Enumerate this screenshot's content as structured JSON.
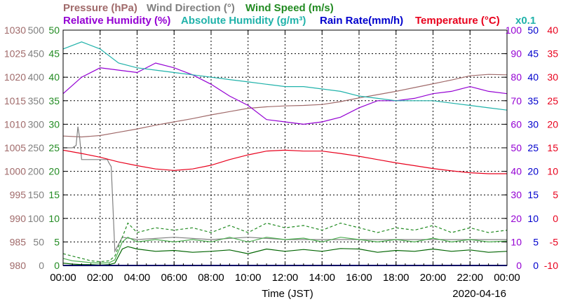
{
  "chart_data": {
    "type": "line",
    "titles": {
      "row1": [
        {
          "key": "pressure",
          "text": "Pressure (hPa)",
          "color": "#a06a6a"
        },
        {
          "key": "wind_direction",
          "text": "Wind Direction (°)",
          "color": "#808080"
        },
        {
          "key": "wind_speed",
          "text": "Wind Speed (m/s)",
          "color": "#228b22"
        }
      ],
      "row2": [
        {
          "key": "humidity",
          "text": "Relative Humidity (%)",
          "color": "#9400d3"
        },
        {
          "key": "abs_humidity",
          "text": "Absolute Humidity (g/m³)",
          "color": "#20b2aa"
        },
        {
          "key": "rain",
          "text": "Rain Rate(mm/h)",
          "color": "#0000cd"
        },
        {
          "key": "temperature",
          "text": "Temperature (°C)",
          "color": "#e8001c"
        }
      ],
      "abs_scale_note": "x0.1"
    },
    "xlabel": "Time (JST)",
    "date": "2020-04-16",
    "x_ticks": [
      "00:00",
      "02:00",
      "04:00",
      "06:00",
      "08:00",
      "10:00",
      "12:00",
      "14:00",
      "16:00",
      "18:00",
      "20:00",
      "22:00",
      "00:00"
    ],
    "x_range_hours": [
      0,
      24
    ],
    "grid": true,
    "axes": {
      "pressure": {
        "range": [
          980,
          1030
        ],
        "ticks": [
          "1030",
          "1025",
          "1020",
          "1015",
          "1010",
          "1005",
          "1000",
          "995",
          "990",
          "985",
          "980"
        ],
        "color": "#a06a6a"
      },
      "wind_direction": {
        "range": [
          0,
          500
        ],
        "ticks": [
          "500",
          "450",
          "400",
          "350",
          "300",
          "250",
          "200",
          "150",
          "100",
          "50",
          "0"
        ],
        "color": "#808080"
      },
      "wind_speed": {
        "range": [
          0,
          50
        ],
        "ticks": [
          "50",
          "45",
          "40",
          "35",
          "30",
          "25",
          "20",
          "15",
          "10",
          "5",
          "0"
        ],
        "color": "#228b22"
      },
      "humidity": {
        "range": [
          0,
          100
        ],
        "ticks": [
          "100",
          "90",
          "80",
          "70",
          "60",
          "50",
          "40",
          "30",
          "20",
          "10",
          "0"
        ],
        "color": "#9400d3"
      },
      "rain": {
        "range": [
          0,
          50
        ],
        "ticks": [
          "50",
          "45",
          "40",
          "35",
          "30",
          "25",
          "20",
          "15",
          "10",
          "5",
          "0"
        ],
        "color": "#0000cd"
      },
      "temperature": {
        "range": [
          -10,
          40
        ],
        "ticks": [
          "40",
          "35",
          "30",
          "25",
          "20",
          "15",
          "10",
          "5",
          "0",
          "-5",
          "-10"
        ],
        "color": "#e8001c"
      }
    },
    "series": [
      {
        "name": "Pressure (hPa)",
        "axis": "pressure",
        "color": "#a06a6a",
        "x": [
          0,
          1,
          2,
          3,
          4,
          5,
          6,
          7,
          8,
          9,
          10,
          11,
          12,
          13,
          14,
          15,
          16,
          17,
          18,
          19,
          20,
          21,
          22,
          23,
          24
        ],
        "y": [
          1007.5,
          1007.3,
          1007.6,
          1008.3,
          1009,
          1009.8,
          1010.5,
          1011.2,
          1012,
          1012.7,
          1013.4,
          1013.7,
          1013.9,
          1014,
          1014.2,
          1014.8,
          1015.6,
          1016.3,
          1017,
          1017.8,
          1018.6,
          1019.4,
          1020.3,
          1020.6,
          1020.5
        ]
      },
      {
        "name": "Wind Direction (°)",
        "axis": "wind_direction",
        "color": "#808080",
        "x": [
          0,
          0.5,
          0.7,
          0.8,
          0.9,
          1.0,
          1.1,
          1.5,
          2.4,
          2.45,
          2.6,
          2.8,
          3.2,
          4,
          6,
          8,
          10,
          12,
          14,
          16,
          18,
          20,
          22,
          24
        ],
        "y": [
          250,
          250,
          255,
          295,
          270,
          225,
          225,
          225,
          225,
          220,
          210,
          30,
          60,
          55,
          60,
          55,
          60,
          55,
          55,
          55,
          55,
          55,
          55,
          55
        ]
      },
      {
        "name": "Wind Speed (m/s)",
        "axis": "wind_speed",
        "x": [
          0,
          0.5,
          1,
          1.5,
          2,
          2.5,
          2.8,
          3.2,
          3.5,
          4,
          5,
          6,
          7,
          8,
          9,
          10,
          11,
          12,
          13,
          14,
          15,
          16,
          17,
          18,
          19,
          20,
          21,
          22,
          23,
          24
        ],
        "y": [
          0.5,
          0.3,
          0.2,
          0.2,
          0.1,
          0.2,
          0.5,
          3.5,
          4,
          3.5,
          3,
          3.2,
          2.8,
          3,
          3.3,
          2.5,
          3.5,
          3,
          3.4,
          3,
          3.6,
          3.5,
          2.8,
          3.2,
          3,
          3.5,
          3,
          3.3,
          2.8,
          3
        ],
        "y_max": [
          2.5,
          2,
          1.5,
          1,
          0.8,
          1,
          2,
          6,
          9,
          7,
          8,
          7.5,
          8,
          7,
          8.5,
          7,
          9,
          8,
          8.5,
          7.5,
          9,
          8,
          7,
          8,
          7.5,
          8.5,
          7,
          8,
          7,
          7.5
        ],
        "y_avg": [
          1.5,
          1,
          0.8,
          0.6,
          0.5,
          0.6,
          1.2,
          5,
          6,
          5,
          5.5,
          5,
          5.5,
          5,
          6,
          5,
          6,
          5.5,
          5.8,
          5,
          6,
          5.5,
          5,
          5.5,
          5,
          5.8,
          5,
          5.5,
          5,
          5.2
        ],
        "colors": [
          "#006400",
          "#228b22",
          "#4caf50"
        ]
      },
      {
        "name": "Relative Humidity (%)",
        "axis": "humidity",
        "color": "#9400d3",
        "x": [
          0,
          1,
          2,
          3,
          4,
          5,
          6,
          7,
          8,
          9,
          10,
          11,
          12,
          13,
          14,
          15,
          16,
          17,
          18,
          19,
          20,
          21,
          22,
          23,
          24
        ],
        "y": [
          73,
          80,
          84,
          83,
          82,
          86,
          84,
          81,
          77,
          72,
          68,
          62,
          61,
          60,
          61,
          63,
          67,
          70,
          70,
          71,
          73,
          74,
          76,
          74,
          73
        ]
      },
      {
        "name": "Absolute Humidity (g/m³)",
        "axis": "humidity",
        "color": "#20b2aa",
        "x": [
          0,
          1,
          2,
          3,
          4,
          5,
          6,
          7,
          8,
          9,
          10,
          11,
          12,
          13,
          14,
          15,
          16,
          17,
          18,
          19,
          20,
          21,
          22,
          23,
          24
        ],
        "y": [
          92,
          95,
          92,
          86,
          84,
          83,
          82,
          81,
          80,
          79,
          78,
          77,
          76,
          76,
          75,
          74,
          72,
          71,
          70,
          70,
          70,
          69,
          68,
          67,
          66
        ]
      },
      {
        "name": "Temperature (°C)",
        "axis": "temperature",
        "color": "#e8001c",
        "x": [
          0,
          1,
          2,
          3,
          4,
          5,
          6,
          7,
          8,
          9,
          10,
          11,
          12,
          13,
          14,
          15,
          16,
          17,
          18,
          19,
          20,
          21,
          22,
          23,
          24
        ],
        "y": [
          14.5,
          13.8,
          13,
          12,
          11.2,
          10.5,
          10.2,
          10.5,
          11.3,
          12.5,
          13.5,
          14.3,
          14.5,
          14.3,
          14.3,
          13.8,
          13.2,
          12.5,
          11.8,
          11.2,
          10.6,
          10.1,
          9.7,
          9.5,
          9.5
        ]
      },
      {
        "name": "Rain Rate(mm/h)",
        "axis": "rain",
        "color": "#0000cd",
        "x": [
          0,
          24
        ],
        "y": [
          0,
          0
        ]
      }
    ]
  }
}
